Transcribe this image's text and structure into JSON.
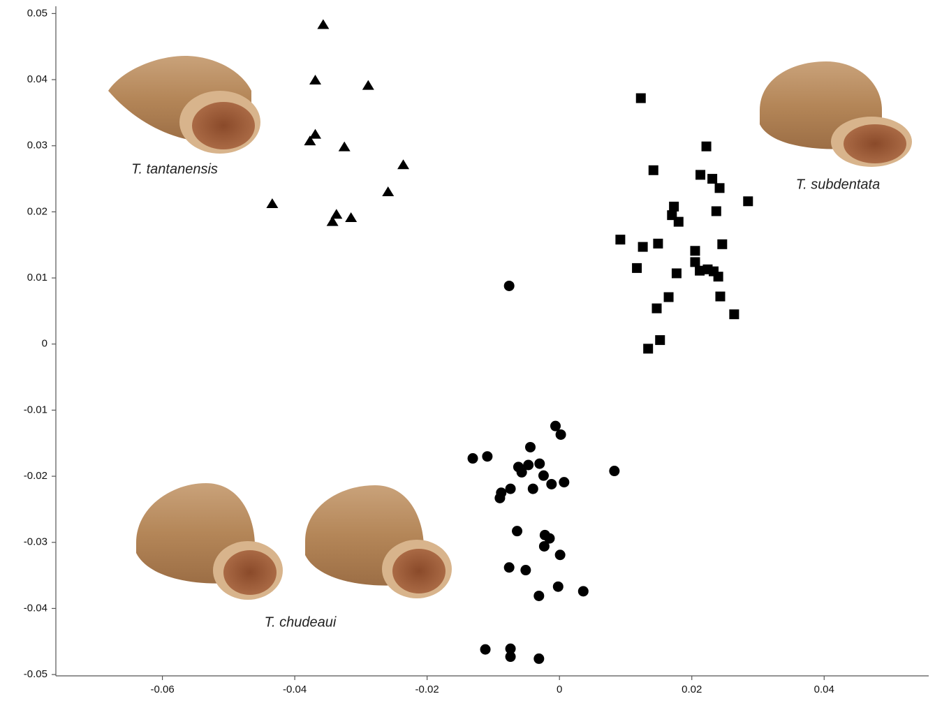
{
  "chart_data": {
    "type": "scatter",
    "xlim": [
      -0.0761,
      0.0558
    ],
    "ylim": [
      -0.0502,
      0.0511
    ],
    "xticks": [
      -0.06,
      -0.04,
      -0.02,
      0,
      0.02,
      0.04
    ],
    "yticks": [
      0.05,
      0.04,
      0.03,
      0.02,
      0.01,
      0,
      -0.01,
      -0.02,
      -0.03,
      -0.04,
      -0.05
    ],
    "annotations": [
      "T. tantanensis",
      "T. subdentata",
      "T. chudeaui"
    ],
    "series": [
      {
        "marker": "triangle",
        "color": "#000000",
        "x": [
          -0.0357,
          -0.0369,
          -0.0289,
          -0.0369,
          -0.0377,
          -0.0325,
          -0.0236,
          -0.0259,
          -0.0434,
          -0.0337,
          -0.0315,
          -0.0343
        ],
        "y": [
          0.0483,
          0.0399,
          0.0391,
          0.0317,
          0.0307,
          0.0298,
          0.0271,
          0.023,
          0.0212,
          0.0196,
          0.0191,
          0.0185
        ]
      },
      {
        "marker": "square",
        "color": "#000000",
        "x": [
          0.0123,
          0.0222,
          0.0142,
          0.0213,
          0.0231,
          0.0242,
          0.0285,
          0.0173,
          0.017,
          0.018,
          0.0237,
          0.0092,
          0.0149,
          0.0126,
          0.0246,
          0.0205,
          0.0205,
          0.0117,
          0.0212,
          0.0224,
          0.0233,
          0.0177,
          0.024,
          0.0243,
          0.0165,
          0.0147,
          0.0264,
          0.0152,
          0.0134
        ],
        "y": [
          0.0372,
          0.0299,
          0.0263,
          0.0256,
          0.025,
          0.0236,
          0.0216,
          0.0208,
          0.0195,
          0.0185,
          0.0201,
          0.0158,
          0.0152,
          0.0147,
          0.0151,
          0.0141,
          0.0124,
          0.0115,
          0.0111,
          0.0113,
          0.011,
          0.0107,
          0.0102,
          0.0072,
          0.0071,
          0.0054,
          0.0045,
          0.0006,
          -0.0007
        ]
      },
      {
        "marker": "circle",
        "color": "#000000",
        "x": [
          -0.0076,
          -0.0006,
          0.0002,
          -0.0131,
          -0.0109,
          -0.0044,
          -0.0062,
          -0.0047,
          -0.003,
          0.0083,
          -0.0057,
          -0.0024,
          0.0007,
          -0.0012,
          -0.0074,
          -0.004,
          -0.0088,
          -0.009,
          -0.0064,
          -0.0022,
          -0.0015,
          -0.0023,
          0.0001,
          -0.0076,
          -0.0051,
          -0.0002,
          0.0036,
          -0.0031,
          -0.0112,
          -0.0074,
          -0.0074,
          -0.0031
        ],
        "y": [
          0.0088,
          -0.0124,
          -0.0137,
          -0.0173,
          -0.017,
          -0.0156,
          -0.0186,
          -0.0183,
          -0.0181,
          -0.0192,
          -0.0194,
          -0.0199,
          -0.0209,
          -0.0212,
          -0.0219,
          -0.0219,
          -0.0225,
          -0.0233,
          -0.0283,
          -0.0289,
          -0.0294,
          -0.0306,
          -0.0319,
          -0.0338,
          -0.0342,
          -0.0367,
          -0.0374,
          -0.0381,
          -0.0462,
          -0.0461,
          -0.0473,
          -0.0476
        ]
      }
    ]
  }
}
